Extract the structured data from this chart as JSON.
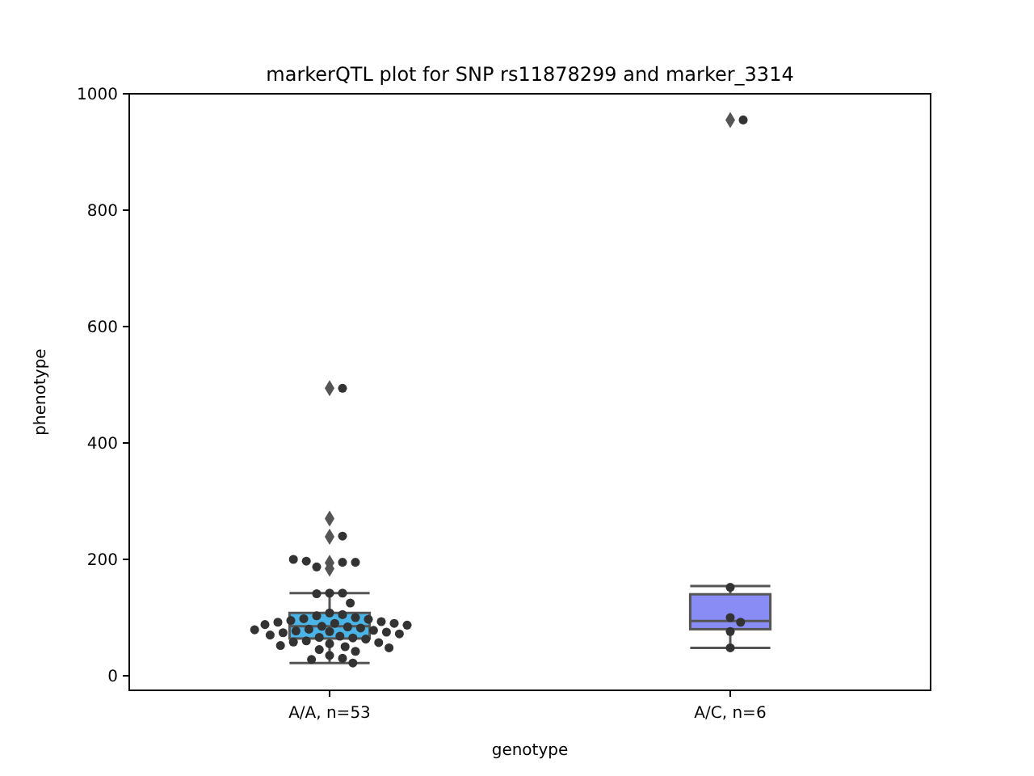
{
  "chart_data": {
    "type": "box",
    "title": "markerQTL plot for SNP rs11878299 and marker_3314",
    "xlabel": "genotype",
    "ylabel": "phenotype",
    "categories": [
      "A/A, n=53",
      "A/C, n=6"
    ],
    "ylim": [
      -25,
      1000
    ],
    "yticks": [
      0,
      200,
      400,
      600,
      800,
      1000
    ],
    "grid": false,
    "series": [
      {
        "type": "box",
        "colors": [
          "#4bb4e6",
          "#8a8cf5"
        ],
        "boxes": [
          {
            "low": 22,
            "q1": 64,
            "median": 85,
            "q3": 108,
            "high": 142,
            "outliers": [
              494,
              270,
              239,
              194,
              184
            ]
          },
          {
            "low": 48,
            "q1": 80,
            "median": 94,
            "q3": 140,
            "high": 154,
            "outliers": [
              955
            ]
          }
        ]
      },
      {
        "type": "scatter",
        "color": "#333333",
        "marker": "circle",
        "x": [
          "A/A, n=53",
          "A/A, n=53",
          "A/A, n=53",
          "A/A, n=53",
          "A/A, n=53",
          "A/A, n=53",
          "A/A, n=53",
          "A/A, n=53",
          "A/A, n=53",
          "A/A, n=53",
          "A/A, n=53",
          "A/A, n=53",
          "A/A, n=53",
          "A/A, n=53",
          "A/A, n=53",
          "A/A, n=53",
          "A/A, n=53",
          "A/A, n=53",
          "A/A, n=53",
          "A/A, n=53",
          "A/A, n=53",
          "A/A, n=53",
          "A/A, n=53",
          "A/A, n=53",
          "A/A, n=53",
          "A/A, n=53",
          "A/A, n=53",
          "A/A, n=53",
          "A/A, n=53",
          "A/A, n=53",
          "A/A, n=53",
          "A/A, n=53",
          "A/A, n=53",
          "A/A, n=53",
          "A/A, n=53",
          "A/A, n=53",
          "A/A, n=53",
          "A/A, n=53",
          "A/A, n=53",
          "A/A, n=53",
          "A/A, n=53",
          "A/A, n=53",
          "A/A, n=53",
          "A/A, n=53",
          "A/A, n=53",
          "A/A, n=53",
          "A/A, n=53",
          "A/A, n=53",
          "A/A, n=53",
          "A/A, n=53",
          "A/A, n=53",
          "A/A, n=53",
          "A/A, n=53",
          "A/C, n=6",
          "A/C, n=6",
          "A/C, n=6",
          "A/C, n=6",
          "A/C, n=6",
          "A/C, n=6"
        ],
        "values": [
          494,
          240,
          195,
          187,
          197,
          195,
          200,
          142,
          142,
          141,
          125,
          108,
          105,
          103,
          100,
          98,
          97,
          95,
          93,
          92,
          90,
          90,
          88,
          87,
          85,
          84,
          82,
          80,
          79,
          78,
          77,
          76,
          75,
          74,
          72,
          70,
          68,
          66,
          65,
          63,
          60,
          58,
          57,
          55,
          52,
          50,
          48,
          45,
          42,
          35,
          30,
          28,
          22,
          955,
          152,
          100,
          92,
          76,
          48
        ]
      }
    ]
  }
}
